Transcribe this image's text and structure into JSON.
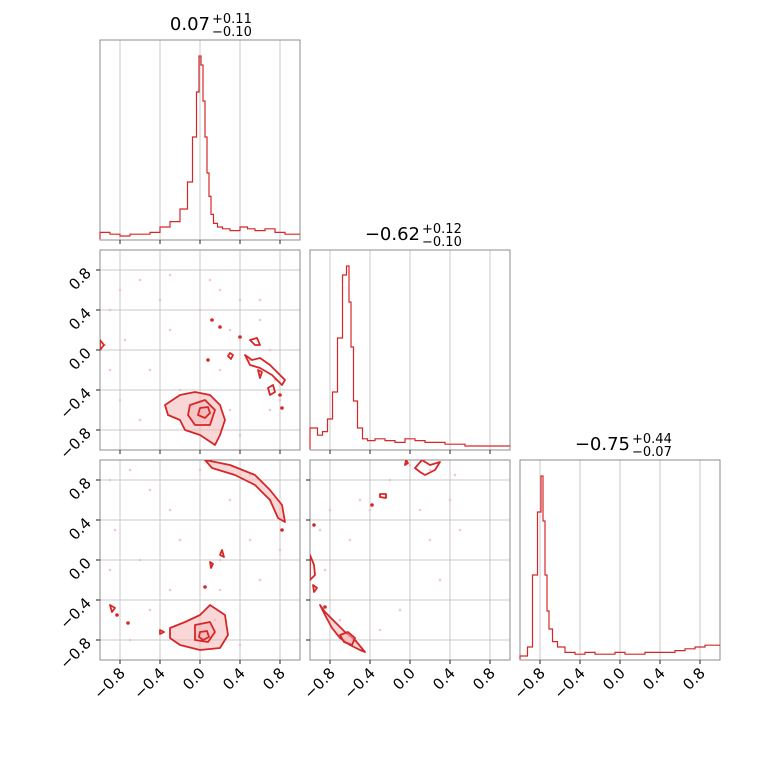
{
  "chart_data": {
    "type": "corner",
    "color": "#d62728",
    "fill_color": "#f4b6b6",
    "grid": true,
    "ticks": [
      -0.8,
      -0.4,
      0.0,
      0.4,
      0.8
    ],
    "tick_labels": [
      "−0.8",
      "−0.4",
      "0.0",
      "0.4",
      "0.8"
    ],
    "xlim": [
      -1,
      1
    ],
    "ylim": [
      -1,
      1
    ],
    "titles": [
      {
        "value": "0.07",
        "plus": "+0.11",
        "minus": "−0.10"
      },
      {
        "value": "−0.62",
        "plus": "+0.12",
        "minus": "−0.10"
      },
      {
        "value": "−0.75",
        "plus": "+0.44",
        "minus": "−0.07"
      }
    ],
    "hist1": {
      "x": [
        -0.95,
        -0.85,
        -0.75,
        -0.65,
        -0.55,
        -0.45,
        -0.35,
        -0.25,
        -0.15,
        -0.1,
        -0.05,
        -0.02,
        0.0,
        0.02,
        0.04,
        0.06,
        0.08,
        0.1,
        0.12,
        0.15,
        0.2,
        0.25,
        0.35,
        0.45,
        0.5,
        0.6,
        0.7,
        0.8,
        0.9
      ],
      "y": [
        0.02,
        0.01,
        0.0,
        0.01,
        0.01,
        0.02,
        0.05,
        0.08,
        0.15,
        0.3,
        0.55,
        0.8,
        1.0,
        0.95,
        0.75,
        0.55,
        0.35,
        0.22,
        0.12,
        0.07,
        0.05,
        0.04,
        0.03,
        0.05,
        0.04,
        0.03,
        0.04,
        0.02,
        0.01
      ]
    },
    "hist2": {
      "x": [
        -0.95,
        -0.9,
        -0.85,
        -0.8,
        -0.75,
        -0.7,
        -0.65,
        -0.62,
        -0.6,
        -0.58,
        -0.55,
        -0.5,
        -0.45,
        -0.4,
        -0.3,
        -0.2,
        -0.1,
        0.0,
        0.1,
        0.2,
        0.3,
        0.4,
        0.5,
        0.6,
        0.7,
        0.8
      ],
      "y": [
        0.1,
        0.06,
        0.08,
        0.15,
        0.3,
        0.6,
        0.95,
        1.0,
        0.8,
        0.55,
        0.25,
        0.1,
        0.04,
        0.03,
        0.04,
        0.03,
        0.02,
        0.04,
        0.03,
        0.02,
        0.02,
        0.01,
        0.01,
        0.0,
        0.0,
        0.0
      ]
    },
    "hist3": {
      "x": [
        -0.95,
        -0.9,
        -0.85,
        -0.8,
        -0.78,
        -0.76,
        -0.74,
        -0.72,
        -0.7,
        -0.65,
        -0.6,
        -0.5,
        -0.4,
        -0.3,
        -0.2,
        -0.1,
        0.0,
        0.1,
        0.2,
        0.3,
        0.4,
        0.5,
        0.6,
        0.7,
        0.8,
        0.9
      ],
      "y": [
        0.0,
        0.05,
        0.45,
        0.8,
        1.0,
        0.75,
        0.45,
        0.25,
        0.15,
        0.08,
        0.05,
        0.02,
        0.01,
        0.02,
        0.01,
        0.01,
        0.02,
        0.01,
        0.01,
        0.02,
        0.02,
        0.02,
        0.03,
        0.04,
        0.05,
        0.06
      ]
    },
    "scatter21": [
      [
        -0.9,
        0.4
      ],
      [
        -0.8,
        0.6
      ],
      [
        -0.6,
        0.7
      ],
      [
        -0.3,
        0.75
      ],
      [
        0.1,
        0.7
      ],
      [
        0.4,
        0.5
      ],
      [
        0.6,
        0.3
      ],
      [
        0.7,
        0.0
      ],
      [
        0.75,
        -0.3
      ],
      [
        0.7,
        -0.6
      ],
      [
        -0.9,
        -0.2
      ],
      [
        -0.8,
        -0.5
      ],
      [
        -0.5,
        -0.2
      ],
      [
        -0.3,
        0.2
      ],
      [
        0.3,
        0.2
      ],
      [
        0.5,
        -0.1
      ],
      [
        0.3,
        -0.6
      ],
      [
        0.4,
        -0.85
      ],
      [
        -0.6,
        -0.7
      ],
      [
        -0.75,
        0.1
      ],
      [
        0.2,
        -0.2
      ],
      [
        -0.2,
        -0.4
      ],
      [
        0.6,
        0.5
      ],
      [
        -0.4,
        0.5
      ],
      [
        0.0,
        0.4
      ],
      [
        0.8,
        -0.5
      ],
      [
        -0.95,
        0.05
      ],
      [
        0.2,
        0.6
      ]
    ],
    "scatter31": [
      [
        -0.9,
        0.8
      ],
      [
        -0.7,
        0.9
      ],
      [
        -0.5,
        0.7
      ],
      [
        -0.3,
        0.5
      ],
      [
        0.3,
        0.6
      ],
      [
        0.5,
        0.85
      ],
      [
        0.7,
        0.6
      ],
      [
        -0.85,
        0.3
      ],
      [
        -0.9,
        -0.1
      ],
      [
        0.2,
        0.0
      ],
      [
        0.2,
        -0.3
      ],
      [
        0.15,
        -0.6
      ],
      [
        -0.5,
        -0.5
      ],
      [
        -0.3,
        -0.3
      ],
      [
        0.5,
        0.2
      ],
      [
        0.6,
        -0.2
      ],
      [
        -0.7,
        -0.8
      ],
      [
        0.4,
        -0.85
      ],
      [
        -0.2,
        0.2
      ],
      [
        0.0,
        0.9
      ],
      [
        0.8,
        0.1
      ],
      [
        -0.6,
        0.0
      ]
    ],
    "scatter32": [
      [
        -0.9,
        0.3
      ],
      [
        -0.85,
        -0.1
      ],
      [
        -0.7,
        -0.6
      ],
      [
        -0.6,
        0.2
      ],
      [
        -0.4,
        0.5
      ],
      [
        -0.2,
        0.8
      ],
      [
        0.0,
        0.95
      ],
      [
        0.2,
        0.9
      ],
      [
        0.4,
        0.6
      ],
      [
        0.5,
        0.3
      ],
      [
        0.3,
        -0.2
      ],
      [
        -0.1,
        -0.5
      ],
      [
        -0.3,
        -0.7
      ],
      [
        0.1,
        0.5
      ],
      [
        -0.5,
        0.6
      ],
      [
        0.45,
        0.85
      ],
      [
        -0.8,
        0.5
      ],
      [
        0.2,
        0.2
      ]
    ],
    "contours21": [
      {
        "fill": true,
        "pts": [
          [
            -0.35,
            -0.55
          ],
          [
            -0.2,
            -0.45
          ],
          [
            -0.05,
            -0.42
          ],
          [
            0.1,
            -0.45
          ],
          [
            0.2,
            -0.55
          ],
          [
            0.25,
            -0.7
          ],
          [
            0.2,
            -0.85
          ],
          [
            0.15,
            -0.95
          ],
          [
            0.0,
            -0.85
          ],
          [
            -0.15,
            -0.8
          ],
          [
            -0.2,
            -0.7
          ],
          [
            -0.32,
            -0.65
          ]
        ]
      },
      {
        "fill": true,
        "pts": [
          [
            -0.1,
            -0.55
          ],
          [
            0.05,
            -0.5
          ],
          [
            0.15,
            -0.6
          ],
          [
            0.1,
            -0.75
          ],
          [
            -0.05,
            -0.75
          ],
          [
            -0.12,
            -0.65
          ]
        ]
      },
      {
        "fill": true,
        "pts": [
          [
            0.0,
            -0.58
          ],
          [
            0.08,
            -0.57
          ],
          [
            0.1,
            -0.63
          ],
          [
            0.05,
            -0.68
          ],
          [
            -0.02,
            -0.65
          ]
        ]
      },
      {
        "fill": false,
        "pts": [
          [
            0.45,
            -0.05
          ],
          [
            0.52,
            -0.1
          ],
          [
            0.6,
            -0.08
          ],
          [
            0.7,
            -0.15
          ],
          [
            0.8,
            -0.25
          ],
          [
            0.85,
            -0.3
          ],
          [
            0.82,
            -0.35
          ],
          [
            0.72,
            -0.25
          ],
          [
            0.6,
            -0.18
          ],
          [
            0.5,
            -0.15
          ]
        ]
      },
      {
        "fill": false,
        "pts": [
          [
            0.5,
            0.1
          ],
          [
            0.55,
            0.05
          ],
          [
            0.6,
            0.05
          ],
          [
            0.57,
            0.12
          ]
        ]
      },
      {
        "fill": false,
        "pts": [
          [
            0.68,
            -0.38
          ],
          [
            0.73,
            -0.35
          ],
          [
            0.75,
            -0.42
          ],
          [
            0.7,
            -0.45
          ]
        ]
      },
      {
        "fill": false,
        "pts": [
          [
            -1.0,
            0.1
          ],
          [
            -0.96,
            0.05
          ],
          [
            -1.0,
            0.0
          ]
        ]
      },
      {
        "fill": false,
        "pts": [
          [
            0.58,
            -0.2
          ],
          [
            0.62,
            -0.22
          ],
          [
            0.6,
            -0.28
          ]
        ]
      },
      {
        "fill": false,
        "pts": [
          [
            0.3,
            -0.03
          ],
          [
            0.33,
            -0.05
          ],
          [
            0.31,
            -0.09
          ],
          [
            0.28,
            -0.06
          ]
        ]
      }
    ],
    "dots21": [
      [
        0.12,
        0.3
      ],
      [
        0.2,
        0.23
      ],
      [
        0.4,
        0.13
      ],
      [
        0.08,
        -0.1
      ],
      [
        0.8,
        -0.45
      ],
      [
        0.82,
        -0.58
      ]
    ],
    "contours31": [
      {
        "fill": true,
        "pts": [
          [
            -0.3,
            -0.68
          ],
          [
            -0.15,
            -0.62
          ],
          [
            0.0,
            -0.55
          ],
          [
            0.1,
            -0.45
          ],
          [
            0.25,
            -0.55
          ],
          [
            0.28,
            -0.75
          ],
          [
            0.2,
            -0.88
          ],
          [
            0.0,
            -0.9
          ],
          [
            -0.2,
            -0.85
          ],
          [
            -0.3,
            -0.78
          ]
        ]
      },
      {
        "fill": true,
        "pts": [
          [
            -0.05,
            -0.65
          ],
          [
            0.1,
            -0.62
          ],
          [
            0.15,
            -0.72
          ],
          [
            0.08,
            -0.82
          ],
          [
            -0.05,
            -0.8
          ]
        ]
      },
      {
        "fill": true,
        "pts": [
          [
            0.0,
            -0.72
          ],
          [
            0.07,
            -0.71
          ],
          [
            0.09,
            -0.77
          ],
          [
            0.03,
            -0.8
          ],
          [
            -0.01,
            -0.77
          ]
        ]
      },
      {
        "fill": true,
        "pts": [
          [
            0.05,
            1.0
          ],
          [
            0.3,
            0.95
          ],
          [
            0.55,
            0.85
          ],
          [
            0.7,
            0.7
          ],
          [
            0.82,
            0.55
          ],
          [
            0.85,
            0.38
          ],
          [
            0.78,
            0.42
          ],
          [
            0.7,
            0.6
          ],
          [
            0.55,
            0.75
          ],
          [
            0.35,
            0.85
          ],
          [
            0.12,
            0.92
          ]
        ]
      },
      {
        "fill": false,
        "pts": [
          [
            -0.9,
            -0.45
          ],
          [
            -0.85,
            -0.48
          ],
          [
            -0.88,
            -0.52
          ]
        ]
      },
      {
        "fill": false,
        "pts": [
          [
            -0.4,
            -0.7
          ],
          [
            -0.36,
            -0.72
          ],
          [
            -0.4,
            -0.74
          ]
        ]
      },
      {
        "fill": false,
        "pts": [
          [
            0.2,
            0.05
          ],
          [
            0.24,
            0.03
          ],
          [
            0.22,
            0.1
          ]
        ]
      },
      {
        "fill": false,
        "pts": [
          [
            0.1,
            -0.02
          ],
          [
            0.13,
            -0.04
          ],
          [
            0.11,
            -0.08
          ]
        ]
      }
    ],
    "dots31": [
      [
        -0.83,
        -0.55
      ],
      [
        -0.72,
        -0.63
      ],
      [
        0.05,
        -0.27
      ],
      [
        0.82,
        0.3
      ]
    ],
    "contours32": [
      {
        "fill": true,
        "pts": [
          [
            -0.9,
            -0.45
          ],
          [
            -0.85,
            -0.55
          ],
          [
            -0.78,
            -0.68
          ],
          [
            -0.7,
            -0.78
          ],
          [
            -0.6,
            -0.85
          ],
          [
            -0.5,
            -0.9
          ],
          [
            -0.45,
            -0.92
          ],
          [
            -0.55,
            -0.8
          ],
          [
            -0.65,
            -0.72
          ],
          [
            -0.75,
            -0.62
          ],
          [
            -0.85,
            -0.52
          ]
        ]
      },
      {
        "fill": true,
        "pts": [
          [
            -0.7,
            -0.75
          ],
          [
            -0.62,
            -0.72
          ],
          [
            -0.55,
            -0.78
          ],
          [
            -0.58,
            -0.85
          ],
          [
            -0.66,
            -0.82
          ]
        ]
      },
      {
        "fill": false,
        "pts": [
          [
            0.05,
            0.92
          ],
          [
            0.12,
            1.0
          ],
          [
            0.2,
            0.95
          ],
          [
            0.3,
            0.98
          ],
          [
            0.25,
            0.9
          ],
          [
            0.15,
            0.85
          ],
          [
            0.1,
            0.88
          ]
        ]
      },
      {
        "fill": false,
        "pts": [
          [
            -1.0,
            0.05
          ],
          [
            -0.96,
            -0.05
          ],
          [
            -0.95,
            -0.15
          ],
          [
            -1.0,
            -0.2
          ]
        ]
      },
      {
        "fill": false,
        "pts": [
          [
            -0.3,
            0.66
          ],
          [
            -0.24,
            0.66
          ],
          [
            -0.24,
            0.62
          ],
          [
            -0.3,
            0.63
          ]
        ]
      },
      {
        "fill": false,
        "pts": [
          [
            -0.05,
            0.95
          ],
          [
            -0.02,
            0.97
          ],
          [
            -0.04,
            1.0
          ]
        ]
      },
      {
        "fill": false,
        "pts": [
          [
            -0.97,
            -0.25
          ],
          [
            -0.93,
            -0.28
          ],
          [
            -0.96,
            -0.32
          ]
        ]
      }
    ],
    "dots32": [
      [
        -0.96,
        0.35
      ],
      [
        -0.38,
        0.55
      ],
      [
        -0.85,
        -0.47
      ]
    ]
  }
}
